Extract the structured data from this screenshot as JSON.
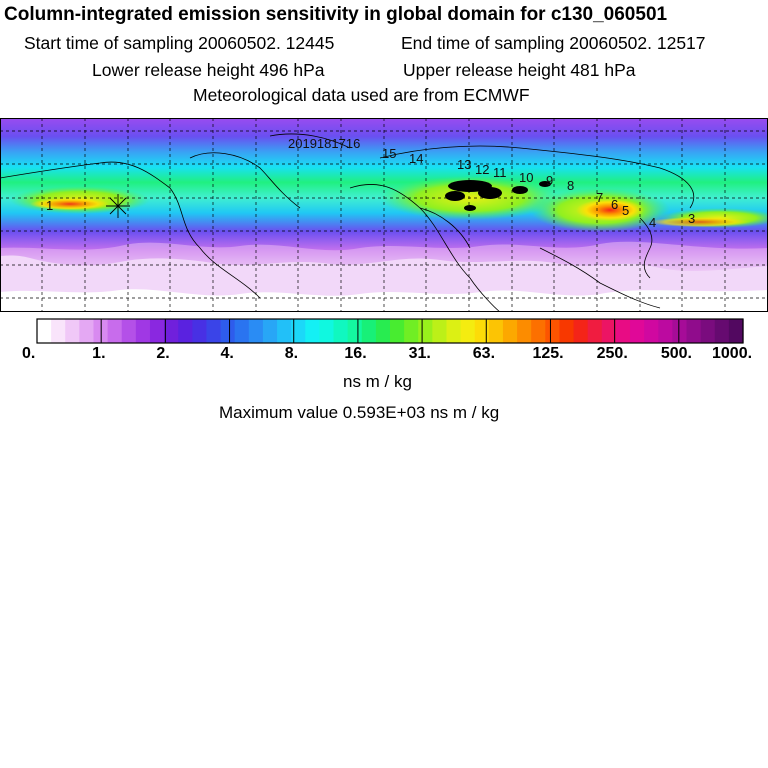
{
  "header": {
    "title": "Column-integrated emission sensitivity in global domain for c130_060501",
    "start_label": "Start time of sampling 20060502. 12445",
    "end_label": "End time of sampling 20060502. 12517",
    "lower_label": "Lower release height  496 hPa",
    "upper_label": "Upper release height  481 hPa",
    "met_label": "Meteorological data used are from ECMWF"
  },
  "map": {
    "trajectory_labels": [
      "1",
      "2019181716",
      "15",
      "14",
      "13",
      "12",
      "11",
      "10",
      "9",
      "8",
      "7",
      "6",
      "5",
      "4",
      "3"
    ]
  },
  "legend": {
    "ticks": [
      "0.",
      "1.",
      "2.",
      "4.",
      "8.",
      "16.",
      "31.",
      "63.",
      "125.",
      "250.",
      "500.",
      "1000."
    ],
    "colors": [
      "#ffffff",
      "#f9e4fb",
      "#f0c8f7",
      "#e4a8f3",
      "#d88af0",
      "#c86cec",
      "#b450e8",
      "#a038e4",
      "#8a28e0",
      "#7020dc",
      "#5a22e0",
      "#4830e4",
      "#3a44e8",
      "#2e5cec",
      "#2a74f0",
      "#2a8cf4",
      "#28a6f6",
      "#22c0f8",
      "#1cd8f8",
      "#14f0f4",
      "#10f8e0",
      "#10f8c0",
      "#14f8a0",
      "#18f078",
      "#28ec50",
      "#48ec30",
      "#70ee24",
      "#98f01c",
      "#bcf018",
      "#dcf014",
      "#f4ec10",
      "#fcdc08",
      "#fcc404",
      "#fca800",
      "#fc8c00",
      "#fc7000",
      "#fc5400",
      "#f83800",
      "#f42418",
      "#f01c40",
      "#ec1464",
      "#e80c84",
      "#e00898",
      "#d008a0",
      "#bc0aa0",
      "#a60c98",
      "#900c8c",
      "#7a0c7e",
      "#660a70",
      "#520860"
    ],
    "units": "ns m / kg",
    "max_value_label": "Maximum value  0.593E+03 ns m / kg"
  }
}
